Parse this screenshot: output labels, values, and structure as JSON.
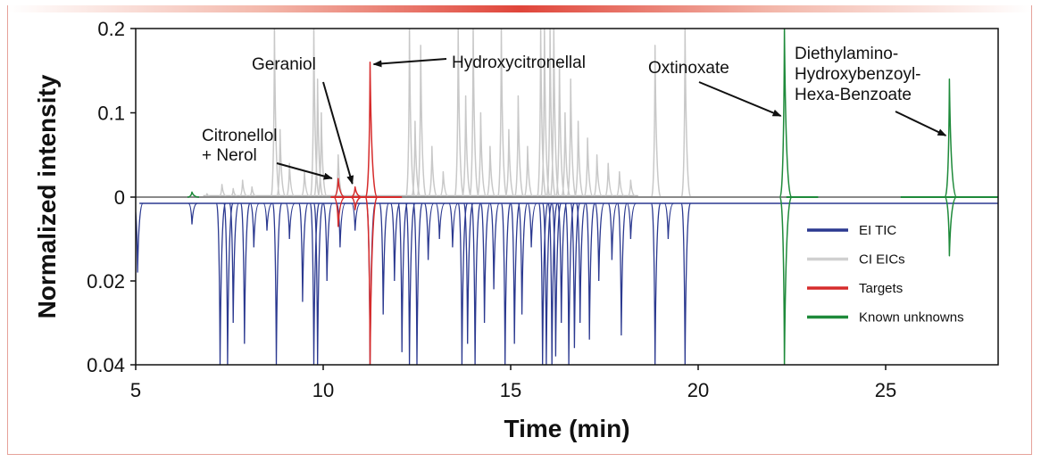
{
  "chart_data": {
    "type": "line",
    "xlabel": "Time (min)",
    "ylabel": "Normalized intensity",
    "xlim": [
      5,
      28
    ],
    "x_ticks": [
      "5",
      "10",
      "15",
      "20",
      "25"
    ],
    "x_tick_values": [
      5,
      10,
      15,
      20,
      25
    ],
    "upper_panel": {
      "ylim": [
        0,
        0.2
      ],
      "y_ticks": [
        "0.2",
        "0.1",
        "0"
      ],
      "y_tick_values": [
        0.2,
        0.1,
        0
      ]
    },
    "lower_panel": {
      "ylim": [
        0,
        0.04
      ],
      "inverted": true,
      "y_ticks": [
        "0.02",
        "0.04"
      ],
      "y_tick_values": [
        0.02,
        0.04
      ]
    },
    "series": [
      {
        "name": "EI TIC",
        "color": "#2b3990",
        "panel": "lower",
        "peaks": [
          {
            "t": 5.05,
            "h": 0.018
          },
          {
            "t": 6.5,
            "h": 0.0065
          },
          {
            "t": 7.25,
            "h": 0.04
          },
          {
            "t": 7.45,
            "h": 0.04
          },
          {
            "t": 7.6,
            "h": 0.03
          },
          {
            "t": 7.9,
            "h": 0.035
          },
          {
            "t": 8.15,
            "h": 0.012
          },
          {
            "t": 8.5,
            "h": 0.008
          },
          {
            "t": 8.75,
            "h": 0.04
          },
          {
            "t": 9.1,
            "h": 0.01
          },
          {
            "t": 9.45,
            "h": 0.025
          },
          {
            "t": 9.75,
            "h": 0.04
          },
          {
            "t": 9.85,
            "h": 0.04
          },
          {
            "t": 10.1,
            "h": 0.02
          },
          {
            "t": 10.45,
            "h": 0.012
          },
          {
            "t": 10.85,
            "h": 0.008
          },
          {
            "t": 11.25,
            "h": 0.04
          },
          {
            "t": 11.6,
            "h": 0.028
          },
          {
            "t": 11.9,
            "h": 0.02
          },
          {
            "t": 12.1,
            "h": 0.037
          },
          {
            "t": 12.3,
            "h": 0.04
          },
          {
            "t": 12.5,
            "h": 0.04
          },
          {
            "t": 12.8,
            "h": 0.015
          },
          {
            "t": 13.1,
            "h": 0.01
          },
          {
            "t": 13.45,
            "h": 0.012
          },
          {
            "t": 13.7,
            "h": 0.04
          },
          {
            "t": 13.85,
            "h": 0.035
          },
          {
            "t": 14.05,
            "h": 0.04
          },
          {
            "t": 14.3,
            "h": 0.03
          },
          {
            "t": 14.55,
            "h": 0.022
          },
          {
            "t": 14.85,
            "h": 0.04
          },
          {
            "t": 15.1,
            "h": 0.035
          },
          {
            "t": 15.3,
            "h": 0.028
          },
          {
            "t": 15.55,
            "h": 0.012
          },
          {
            "t": 15.85,
            "h": 0.04
          },
          {
            "t": 15.95,
            "h": 0.04
          },
          {
            "t": 16.1,
            "h": 0.04
          },
          {
            "t": 16.2,
            "h": 0.038
          },
          {
            "t": 16.35,
            "h": 0.03
          },
          {
            "t": 16.55,
            "h": 0.04
          },
          {
            "t": 16.7,
            "h": 0.036
          },
          {
            "t": 16.85,
            "h": 0.03
          },
          {
            "t": 17.1,
            "h": 0.034
          },
          {
            "t": 17.35,
            "h": 0.02
          },
          {
            "t": 17.7,
            "h": 0.015
          },
          {
            "t": 17.95,
            "h": 0.033
          },
          {
            "t": 18.2,
            "h": 0.01
          },
          {
            "t": 18.85,
            "h": 0.04
          },
          {
            "t": 19.2,
            "h": 0.01
          },
          {
            "t": 19.65,
            "h": 0.04
          }
        ]
      },
      {
        "name": "CI EICs",
        "color": "#c8c8c8",
        "panel": "upper",
        "peaks": [
          {
            "t": 6.9,
            "h": 0.004
          },
          {
            "t": 7.3,
            "h": 0.015
          },
          {
            "t": 7.6,
            "h": 0.01
          },
          {
            "t": 7.85,
            "h": 0.02
          },
          {
            "t": 8.1,
            "h": 0.012
          },
          {
            "t": 8.7,
            "h": 0.2
          },
          {
            "t": 8.85,
            "h": 0.08
          },
          {
            "t": 9.1,
            "h": 0.04
          },
          {
            "t": 9.5,
            "h": 0.03
          },
          {
            "t": 9.75,
            "h": 0.2
          },
          {
            "t": 9.85,
            "h": 0.14
          },
          {
            "t": 9.95,
            "h": 0.1
          },
          {
            "t": 10.4,
            "h": 0.05
          },
          {
            "t": 12.3,
            "h": 0.2
          },
          {
            "t": 12.45,
            "h": 0.09
          },
          {
            "t": 12.6,
            "h": 0.18
          },
          {
            "t": 12.9,
            "h": 0.06
          },
          {
            "t": 13.2,
            "h": 0.03
          },
          {
            "t": 13.6,
            "h": 0.2
          },
          {
            "t": 13.8,
            "h": 0.12
          },
          {
            "t": 14.0,
            "h": 0.2
          },
          {
            "t": 14.2,
            "h": 0.1
          },
          {
            "t": 14.45,
            "h": 0.06
          },
          {
            "t": 14.75,
            "h": 0.2
          },
          {
            "t": 14.95,
            "h": 0.08
          },
          {
            "t": 15.2,
            "h": 0.12
          },
          {
            "t": 15.45,
            "h": 0.06
          },
          {
            "t": 15.8,
            "h": 0.2
          },
          {
            "t": 15.9,
            "h": 0.2
          },
          {
            "t": 16.05,
            "h": 0.2
          },
          {
            "t": 16.15,
            "h": 0.2
          },
          {
            "t": 16.3,
            "h": 0.16
          },
          {
            "t": 16.45,
            "h": 0.1
          },
          {
            "t": 16.6,
            "h": 0.14
          },
          {
            "t": 16.8,
            "h": 0.09
          },
          {
            "t": 17.05,
            "h": 0.07
          },
          {
            "t": 17.3,
            "h": 0.05
          },
          {
            "t": 17.6,
            "h": 0.04
          },
          {
            "t": 17.9,
            "h": 0.03
          },
          {
            "t": 18.2,
            "h": 0.02
          },
          {
            "t": 18.85,
            "h": 0.18
          },
          {
            "t": 19.65,
            "h": 0.2
          }
        ]
      },
      {
        "name": "Targets",
        "color": "#d62b2b",
        "panel": "both",
        "peaks": [
          {
            "t": 10.4,
            "h": 0.022,
            "h_lower": 0.007,
            "label": "Citronellol + Nerol"
          },
          {
            "t": 10.85,
            "h": 0.012,
            "h_lower": 0.003,
            "label": "Geraniol"
          },
          {
            "t": 11.25,
            "h": 0.16,
            "h_lower": 0.04,
            "label": "Hydroxycitronellal"
          }
        ]
      },
      {
        "name": "Known unknowns",
        "color": "#1e8a3a",
        "panel": "both",
        "peaks": [
          {
            "t": 6.5,
            "h": 0.006,
            "h_lower": 0
          },
          {
            "t": 22.3,
            "h": 0.2,
            "h_lower": 0.04,
            "label": "Oxtinoxate"
          },
          {
            "t": 26.7,
            "h": 0.14,
            "h_lower": 0.014,
            "label": "Diethylamino-Hydroxybenzoyl-Hexa-Benzoate"
          }
        ]
      }
    ],
    "annotations": [
      {
        "lines": [
          "Citronellol",
          "+ Nerol"
        ],
        "target_t": 10.4
      },
      {
        "lines": [
          "Geraniol"
        ],
        "target_t": 10.85
      },
      {
        "lines": [
          "Hydroxycitronellal"
        ],
        "target_t": 11.25
      },
      {
        "lines": [
          "Oxtinoxate"
        ],
        "target_t": 22.3
      },
      {
        "lines": [
          "Diethylamino-",
          "Hydroxybenzoyl-",
          "Hexa-Benzoate"
        ],
        "target_t": 26.7
      }
    ],
    "legend": {
      "placement": "bottom-right",
      "items": [
        {
          "label": "EI TIC",
          "color": "#2b3990"
        },
        {
          "label": "CI EICs",
          "color": "#d0d0d0"
        },
        {
          "label": "Targets",
          "color": "#d62b2b"
        },
        {
          "label": "Known unknowns",
          "color": "#1e8a3a"
        }
      ]
    }
  }
}
